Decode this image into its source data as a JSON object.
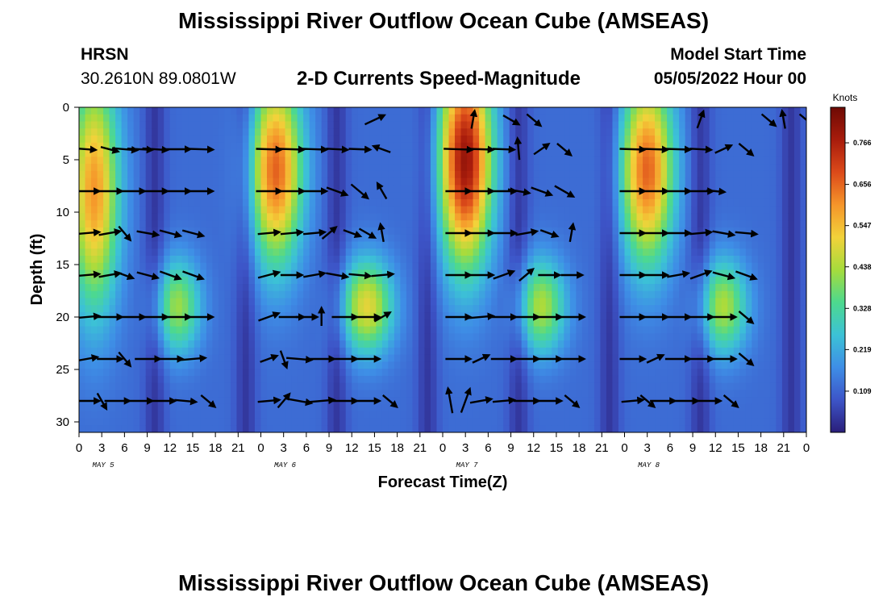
{
  "header": {
    "title": "Mississippi River Outflow Ocean Cube (AMSEAS)",
    "station": "HRSN",
    "coords": "30.2610N  89.0801W",
    "subtitle": "2-D Currents Speed-Magnitude",
    "model_start_label": "Model Start Time",
    "model_start_value": "05/05/2022 Hour 00"
  },
  "footer": {
    "title": "Mississippi River Outflow Ocean Cube (AMSEAS)"
  },
  "chart_data": {
    "type": "heatmap",
    "title": "2-D Currents Speed-Magnitude",
    "xlabel": "Forecast Time(Z)",
    "ylabel": "Depth (ft)",
    "x_range_hours": [
      0,
      96
    ],
    "y_range_ft": [
      0,
      31
    ],
    "x_ticks": [
      "0",
      "3",
      "6",
      "9",
      "12",
      "15",
      "18",
      "21",
      "0",
      "3",
      "6",
      "9",
      "12",
      "15",
      "18",
      "21",
      "0",
      "3",
      "6",
      "9",
      "12",
      "15",
      "18",
      "21",
      "0",
      "3",
      "6",
      "9",
      "12",
      "15",
      "18",
      "21",
      "0"
    ],
    "y_ticks": [
      "0",
      "5",
      "10",
      "15",
      "20",
      "25",
      "30"
    ],
    "day_labels": [
      "MAY 5",
      "MAY 6",
      "MAY 7",
      "MAY 8"
    ],
    "colorbar": {
      "unit": "Knots",
      "ticks": [
        "0.766",
        "0.656",
        "0.547",
        "0.438",
        "0.328",
        "0.219",
        "0.109"
      ],
      "tick_values": [
        0.766,
        0.656,
        0.547,
        0.438,
        0.328,
        0.219,
        0.109
      ],
      "range": [
        0,
        0.86
      ],
      "colors": [
        "#2a1e7a",
        "#3d55c8",
        "#3e8ee6",
        "#3cc2d6",
        "#4dd98e",
        "#a6dc3c",
        "#f2d23a",
        "#f5952a",
        "#dc4a1a",
        "#a81c0c",
        "#6e0a04"
      ]
    },
    "speed_field": {
      "description": "current speed (knots) by depth and forecast hour",
      "hot_centers": [
        {
          "hour": 2,
          "depth_ft": 8,
          "speed": 0.6,
          "spread_h": 3.2,
          "spread_ft": 10
        },
        {
          "hour": 26,
          "depth_ft": 6,
          "speed": 0.66,
          "spread_h": 3.4,
          "spread_ft": 8
        },
        {
          "hour": 51,
          "depth_ft": 5,
          "speed": 0.8,
          "spread_h": 3.4,
          "spread_ft": 9
        },
        {
          "hour": 75,
          "depth_ft": 6,
          "speed": 0.66,
          "spread_h": 3.4,
          "spread_ft": 8
        },
        {
          "hour": 13,
          "depth_ft": 19,
          "speed": 0.42,
          "spread_h": 3.0,
          "spread_ft": 4
        },
        {
          "hour": 38,
          "depth_ft": 19,
          "speed": 0.5,
          "spread_h": 3.4,
          "spread_ft": 4
        },
        {
          "hour": 61,
          "depth_ft": 19,
          "speed": 0.44,
          "spread_h": 3.2,
          "spread_ft": 4
        },
        {
          "hour": 85,
          "depth_ft": 19,
          "speed": 0.44,
          "spread_h": 3.2,
          "spread_ft": 4
        }
      ],
      "cold_bands_hours": [
        10,
        22,
        34,
        46,
        58,
        70,
        82,
        94
      ],
      "base_speed": 0.12
    },
    "vector_rows_ft": [
      4,
      8,
      12,
      16,
      20,
      24,
      28
    ],
    "vectors": [
      [
        [
          1,
          -4,
          10
        ],
        [
          4,
          -15,
          10
        ],
        [
          6,
          -5,
          14
        ],
        [
          8,
          -3,
          14
        ],
        [
          10,
          -4,
          14
        ],
        [
          13,
          0,
          14
        ],
        [
          16,
          -2,
          14
        ],
        [
          -1,
          0,
          0
        ],
        [
          -1,
          0,
          0
        ],
        [
          25,
          -2,
          14
        ],
        [
          28,
          -2,
          14
        ],
        [
          31,
          -2,
          14
        ],
        [
          34,
          -3,
          12
        ],
        [
          37,
          -2,
          12
        ],
        [
          40,
          160,
          10
        ],
        [
          43,
          0,
          0
        ],
        [
          -1,
          0,
          0
        ],
        [
          50,
          -2,
          16
        ],
        [
          53,
          -2,
          14
        ],
        [
          56,
          -2,
          12
        ],
        [
          58,
          95,
          12
        ],
        [
          61,
          35,
          10
        ],
        [
          64,
          -40,
          10
        ],
        [
          -1,
          0,
          0
        ],
        [
          -1,
          0,
          0
        ],
        [
          73,
          -2,
          14
        ],
        [
          76,
          -2,
          14
        ],
        [
          79,
          -2,
          14
        ],
        [
          82,
          -3,
          12
        ],
        [
          85,
          25,
          10
        ],
        [
          88,
          -40,
          10
        ],
        [
          -1,
          0,
          0
        ]
      ],
      [
        [
          1,
          0,
          14
        ],
        [
          4,
          0,
          14
        ],
        [
          7,
          0,
          14
        ],
        [
          10,
          0,
          14
        ],
        [
          13,
          0,
          14
        ],
        [
          16,
          0,
          14
        ],
        [
          -1,
          0,
          0
        ],
        [
          -1,
          0,
          0
        ],
        [
          25,
          0,
          14
        ],
        [
          28,
          0,
          14
        ],
        [
          31,
          0,
          14
        ],
        [
          34,
          -20,
          12
        ],
        [
          37,
          -40,
          12
        ],
        [
          40,
          120,
          10
        ],
        [
          -1,
          0,
          0
        ],
        [
          -1,
          0,
          0
        ],
        [
          50,
          0,
          14
        ],
        [
          53,
          0,
          14
        ],
        [
          56,
          0,
          14
        ],
        [
          58,
          -10,
          12
        ],
        [
          61,
          -20,
          12
        ],
        [
          64,
          -30,
          12
        ],
        [
          -1,
          0,
          0
        ],
        [
          -1,
          0,
          0
        ],
        [
          73,
          0,
          14
        ],
        [
          76,
          0,
          14
        ],
        [
          79,
          0,
          14
        ],
        [
          82,
          0,
          14
        ],
        [
          84,
          -5,
          10
        ],
        [
          -1,
          0,
          0
        ],
        [
          -1,
          0,
          0
        ],
        [
          -1,
          0,
          0
        ]
      ],
      [
        [
          1,
          5,
          14
        ],
        [
          4,
          10,
          12
        ],
        [
          6,
          -50,
          10
        ],
        [
          9,
          -10,
          12
        ],
        [
          12,
          -15,
          12
        ],
        [
          15,
          -15,
          12
        ],
        [
          -1,
          0,
          0
        ],
        [
          -1,
          0,
          0
        ],
        [
          25,
          5,
          12
        ],
        [
          28,
          5,
          12
        ],
        [
          31,
          5,
          12
        ],
        [
          33,
          40,
          10
        ],
        [
          36,
          -20,
          10
        ],
        [
          38,
          -30,
          10
        ],
        [
          40,
          100,
          10
        ],
        [
          -1,
          0,
          0
        ],
        [
          50,
          0,
          14
        ],
        [
          53,
          0,
          14
        ],
        [
          56,
          0,
          14
        ],
        [
          59,
          10,
          12
        ],
        [
          62,
          -20,
          10
        ],
        [
          -1,
          0,
          0
        ],
        [
          65,
          80,
          10
        ],
        [
          -1,
          0,
          0
        ],
        [
          73,
          0,
          14
        ],
        [
          76,
          0,
          14
        ],
        [
          79,
          0,
          14
        ],
        [
          82,
          5,
          12
        ],
        [
          85,
          -10,
          12
        ],
        [
          88,
          -5,
          12
        ],
        [
          -1,
          0,
          0
        ],
        [
          -1,
          0,
          0
        ]
      ],
      [
        [
          1,
          5,
          14
        ],
        [
          4,
          10,
          12
        ],
        [
          6,
          -20,
          10
        ],
        [
          9,
          -15,
          12
        ],
        [
          12,
          -20,
          12
        ],
        [
          15,
          -20,
          12
        ],
        [
          -1,
          0,
          0
        ],
        [
          -1,
          0,
          0
        ],
        [
          25,
          15,
          12
        ],
        [
          28,
          0,
          12
        ],
        [
          31,
          10,
          12
        ],
        [
          34,
          -10,
          12
        ],
        [
          37,
          -5,
          12
        ],
        [
          40,
          5,
          12
        ],
        [
          -1,
          0,
          0
        ],
        [
          -1,
          0,
          0
        ],
        [
          50,
          0,
          14
        ],
        [
          53,
          0,
          14
        ],
        [
          56,
          20,
          12
        ],
        [
          59,
          40,
          10
        ],
        [
          62,
          0,
          12
        ],
        [
          65,
          0,
          12
        ],
        [
          -1,
          0,
          0
        ],
        [
          -1,
          0,
          0
        ],
        [
          73,
          0,
          14
        ],
        [
          76,
          0,
          14
        ],
        [
          79,
          10,
          12
        ],
        [
          82,
          20,
          12
        ],
        [
          85,
          -15,
          12
        ],
        [
          88,
          -20,
          12
        ],
        [
          -1,
          0,
          0
        ],
        [
          -1,
          0,
          0
        ]
      ],
      [
        [
          1,
          5,
          14
        ],
        [
          4,
          0,
          14
        ],
        [
          7,
          0,
          14
        ],
        [
          10,
          0,
          14
        ],
        [
          13,
          0,
          14
        ],
        [
          16,
          0,
          14
        ],
        [
          -1,
          0,
          0
        ],
        [
          -1,
          0,
          0
        ],
        [
          25,
          20,
          12
        ],
        [
          28,
          0,
          14
        ],
        [
          30,
          0,
          12
        ],
        [
          32,
          90,
          10
        ],
        [
          35,
          0,
          14
        ],
        [
          38,
          0,
          14
        ],
        [
          40,
          30,
          10
        ],
        [
          -1,
          0,
          0
        ],
        [
          50,
          0,
          14
        ],
        [
          53,
          5,
          14
        ],
        [
          56,
          0,
          14
        ],
        [
          59,
          0,
          14
        ],
        [
          62,
          0,
          14
        ],
        [
          65,
          0,
          14
        ],
        [
          -1,
          0,
          0
        ],
        [
          -1,
          0,
          0
        ],
        [
          73,
          0,
          14
        ],
        [
          76,
          0,
          14
        ],
        [
          79,
          0,
          14
        ],
        [
          82,
          0,
          14
        ],
        [
          85,
          0,
          14
        ],
        [
          88,
          -40,
          10
        ],
        [
          -1,
          0,
          0
        ],
        [
          -1,
          0,
          0
        ]
      ],
      [
        [
          1,
          10,
          12
        ],
        [
          4,
          0,
          14
        ],
        [
          6,
          -50,
          10
        ],
        [
          9,
          0,
          14
        ],
        [
          12,
          0,
          14
        ],
        [
          15,
          5,
          14
        ],
        [
          -1,
          0,
          0
        ],
        [
          -1,
          0,
          0
        ],
        [
          25,
          20,
          10
        ],
        [
          27,
          -70,
          10
        ],
        [
          29,
          -5,
          14
        ],
        [
          32,
          0,
          14
        ],
        [
          35,
          0,
          14
        ],
        [
          38,
          0,
          14
        ],
        [
          -1,
          0,
          0
        ],
        [
          -1,
          0,
          0
        ],
        [
          50,
          0,
          14
        ],
        [
          53,
          25,
          10
        ],
        [
          56,
          0,
          14
        ],
        [
          59,
          0,
          14
        ],
        [
          62,
          0,
          14
        ],
        [
          65,
          0,
          14
        ],
        [
          -1,
          0,
          0
        ],
        [
          -1,
          0,
          0
        ],
        [
          73,
          0,
          14
        ],
        [
          76,
          25,
          10
        ],
        [
          79,
          0,
          14
        ],
        [
          82,
          0,
          14
        ],
        [
          85,
          0,
          14
        ],
        [
          88,
          -40,
          10
        ],
        [
          -1,
          0,
          0
        ],
        [
          -1,
          0,
          0
        ]
      ],
      [
        [
          1,
          0,
          14
        ],
        [
          3,
          -60,
          10
        ],
        [
          5,
          0,
          14
        ],
        [
          8,
          0,
          14
        ],
        [
          11,
          0,
          14
        ],
        [
          14,
          -5,
          12
        ],
        [
          17,
          -40,
          10
        ],
        [
          -1,
          0,
          0
        ],
        [
          25,
          5,
          12
        ],
        [
          27,
          50,
          10
        ],
        [
          29,
          -10,
          14
        ],
        [
          32,
          5,
          14
        ],
        [
          35,
          0,
          14
        ],
        [
          38,
          0,
          14
        ],
        [
          41,
          -40,
          10
        ],
        [
          -1,
          0,
          0
        ],
        [
          49,
          100,
          14
        ],
        [
          51,
          70,
          14
        ],
        [
          53,
          10,
          12
        ],
        [
          56,
          5,
          12
        ],
        [
          59,
          0,
          14
        ],
        [
          62,
          0,
          14
        ],
        [
          65,
          -40,
          10
        ],
        [
          -1,
          0,
          0
        ],
        [
          73,
          5,
          12
        ],
        [
          75,
          -40,
          10
        ],
        [
          77,
          0,
          14
        ],
        [
          80,
          0,
          14
        ],
        [
          83,
          0,
          14
        ],
        [
          86,
          -40,
          10
        ],
        [
          -1,
          0,
          0
        ],
        [
          -1,
          0,
          0
        ]
      ]
    ],
    "surface_arrows": [
      [
        39,
        25,
        12
      ],
      [
        52,
        80,
        10
      ],
      [
        57,
        -30,
        10
      ],
      [
        60,
        -40,
        10
      ],
      [
        82,
        70,
        10
      ],
      [
        91,
        -40,
        10
      ],
      [
        93,
        100,
        10
      ],
      [
        96,
        -40,
        10
      ]
    ]
  }
}
